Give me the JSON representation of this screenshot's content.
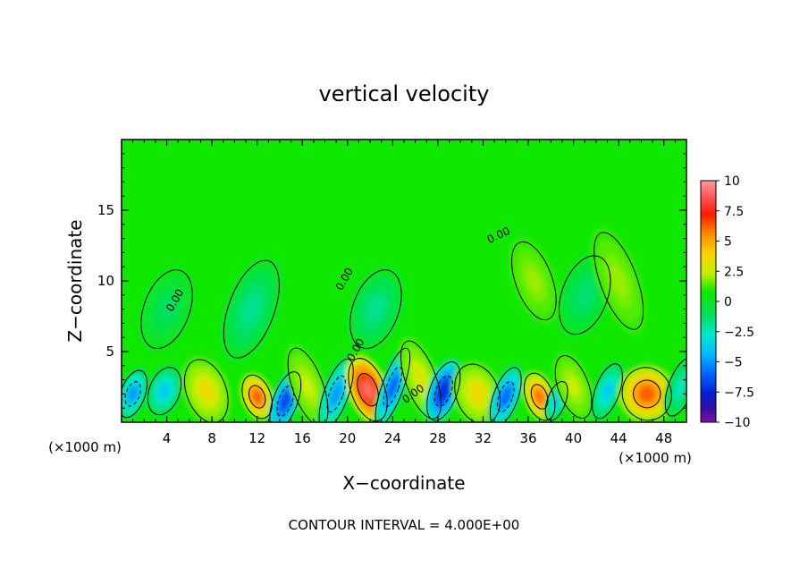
{
  "chart_data": {
    "type": "heatmap",
    "title": "vertical velocity",
    "xlabel": "X−coordinate",
    "ylabel": "Z−coordinate",
    "x_unit_left": "(×1000 m)",
    "x_unit_right": "(×1000 m)",
    "footer": "CONTOUR INTERVAL = 4.000E+00",
    "xlim": [
      0,
      50
    ],
    "ylim": [
      0,
      20
    ],
    "x_ticks": [
      4,
      8,
      12,
      16,
      20,
      24,
      28,
      32,
      36,
      40,
      44,
      48
    ],
    "x_tick_labels": [
      "4",
      "8",
      "12",
      "16",
      "20",
      "24",
      "28",
      "32",
      "36",
      "40",
      "44",
      "48"
    ],
    "y_ticks": [
      5,
      10,
      15
    ],
    "y_tick_labels": [
      "5",
      "10",
      "15"
    ],
    "colorbar": {
      "range": [
        -10,
        10
      ],
      "tick_values": [
        10,
        7.5,
        5,
        2.5,
        0,
        -2.5,
        -5,
        -7.5,
        -10
      ],
      "tick_labels": [
        "10",
        "7.5",
        "5",
        "2.5",
        "0",
        "−2.5",
        "−5",
        "−7.5",
        "−10"
      ]
    },
    "contour_labels": [
      {
        "text": "0.00",
        "x": 5.0,
        "z": 8.5,
        "angle": -60
      },
      {
        "text": "0.00",
        "x": 20.0,
        "z": 10.0,
        "angle": -60
      },
      {
        "text": "0.00",
        "x": 33.5,
        "z": 13.0,
        "angle": -25
      },
      {
        "text": "0.00",
        "x": 21.0,
        "z": 5.0,
        "angle": -60
      },
      {
        "text": "0.00",
        "x": 26.0,
        "z": 1.8,
        "angle": -35
      }
    ],
    "features": [
      {
        "x": 1.0,
        "z": 2.0,
        "w": -4,
        "sx": 0.8,
        "sz": 1.2
      },
      {
        "x": 3.8,
        "z": 2.2,
        "w": -3,
        "sx": 1.0,
        "sz": 1.2
      },
      {
        "x": 7.5,
        "z": 2.2,
        "w": 3,
        "sx": 1.3,
        "sz": 1.6
      },
      {
        "x": 12.0,
        "z": 1.8,
        "w": 6,
        "sx": 0.9,
        "sz": 1.1
      },
      {
        "x": 14.5,
        "z": 1.5,
        "w": -6,
        "sx": 0.8,
        "sz": 1.5
      },
      {
        "x": 16.5,
        "z": 2.5,
        "w": 2,
        "sx": 1.0,
        "sz": 2.0
      },
      {
        "x": 19.0,
        "z": 2.0,
        "w": -4,
        "sx": 0.8,
        "sz": 1.8
      },
      {
        "x": 21.8,
        "z": 2.3,
        "w": 9,
        "sx": 1.1,
        "sz": 1.6
      },
      {
        "x": 24.0,
        "z": 2.5,
        "w": -5,
        "sx": 0.7,
        "sz": 2.0
      },
      {
        "x": 26.5,
        "z": 3.0,
        "w": 2.5,
        "sx": 1.0,
        "sz": 2.0
      },
      {
        "x": 28.5,
        "z": 2.2,
        "w": -7,
        "sx": 0.9,
        "sz": 1.5
      },
      {
        "x": 31.5,
        "z": 2.0,
        "w": 3,
        "sx": 1.4,
        "sz": 1.5
      },
      {
        "x": 34.0,
        "z": 1.8,
        "w": -5,
        "sx": 0.8,
        "sz": 1.5
      },
      {
        "x": 37.0,
        "z": 1.8,
        "w": 5.5,
        "sx": 0.9,
        "sz": 1.2
      },
      {
        "x": 38.5,
        "z": 1.5,
        "w": -3,
        "sx": 0.6,
        "sz": 1.0
      },
      {
        "x": 40.0,
        "z": 2.5,
        "w": 2,
        "sx": 1.0,
        "sz": 1.6
      },
      {
        "x": 43.0,
        "z": 2.2,
        "w": -3,
        "sx": 0.8,
        "sz": 1.4
      },
      {
        "x": 46.5,
        "z": 2.0,
        "w": 6,
        "sx": 1.6,
        "sz": 1.3
      },
      {
        "x": 49.5,
        "z": 2.5,
        "w": -2,
        "sx": 0.8,
        "sz": 1.5
      },
      {
        "x": 11.5,
        "z": 8.0,
        "w": -1.5,
        "sx": 1.5,
        "sz": 2.5
      },
      {
        "x": 22.5,
        "z": 8.0,
        "w": -1.5,
        "sx": 1.5,
        "sz": 2.0
      },
      {
        "x": 41.0,
        "z": 9.0,
        "w": -1.2,
        "sx": 1.5,
        "sz": 2.0
      },
      {
        "x": 44.0,
        "z": 10.0,
        "w": 1.5,
        "sx": 1.2,
        "sz": 2.5
      },
      {
        "x": 36.5,
        "z": 10.0,
        "w": 1.5,
        "sx": 1.2,
        "sz": 2.0
      },
      {
        "x": 4.0,
        "z": 8.0,
        "w": -1.0,
        "sx": 1.5,
        "sz": 2.0
      }
    ]
  }
}
